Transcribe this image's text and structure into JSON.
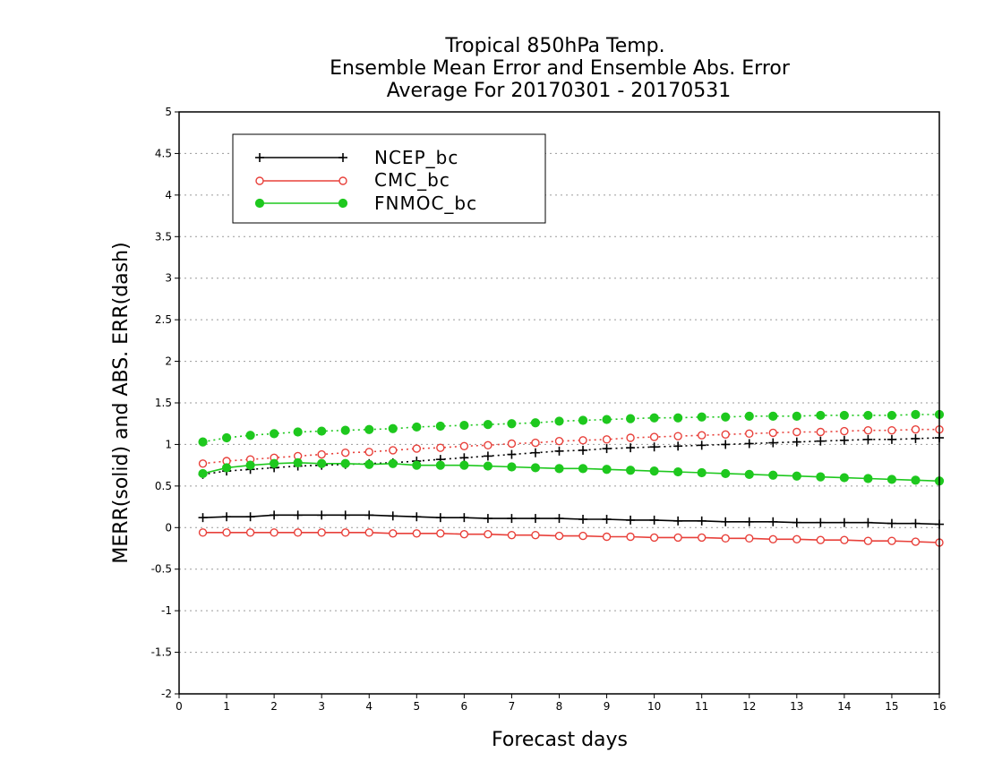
{
  "chart_data": {
    "type": "line",
    "title_lines": [
      "Tropical 850hPa Temp.",
      "Ensemble Mean Error and Ensemble Abs. Error",
      "Average For 20170301 - 20170531"
    ],
    "xlabel": "Forecast days",
    "ylabel": "MERR(solid) and ABS. ERR(dash)",
    "xlim": [
      0,
      16
    ],
    "ylim": [
      -2,
      5
    ],
    "x_ticks": [
      0,
      1,
      2,
      3,
      4,
      5,
      6,
      7,
      8,
      9,
      10,
      11,
      12,
      13,
      14,
      15,
      16
    ],
    "y_ticks": [
      -2,
      -1.5,
      -1,
      -0.5,
      0,
      0.5,
      1,
      1.5,
      2,
      2.5,
      3,
      3.5,
      4,
      4.5,
      5
    ],
    "grid": "horizontal dotted",
    "legend_position": "top-left",
    "x": [
      0.5,
      1,
      1.5,
      2,
      2.5,
      3,
      3.5,
      4,
      4.5,
      5,
      5.5,
      6,
      6.5,
      7,
      7.5,
      8,
      8.5,
      9,
      9.5,
      10,
      10.5,
      11,
      11.5,
      12,
      12.5,
      13,
      13.5,
      14,
      14.5,
      15,
      15.5,
      16
    ],
    "series": [
      {
        "name": "NCEP_bc",
        "color": "#000000",
        "marker": "plus",
        "merr": [
          0.12,
          0.13,
          0.13,
          0.15,
          0.15,
          0.15,
          0.15,
          0.15,
          0.14,
          0.13,
          0.12,
          0.12,
          0.11,
          0.11,
          0.11,
          0.11,
          0.1,
          0.1,
          0.09,
          0.09,
          0.08,
          0.08,
          0.07,
          0.07,
          0.07,
          0.06,
          0.06,
          0.06,
          0.06,
          0.05,
          0.05,
          0.04
        ],
        "abs_err": [
          0.64,
          0.68,
          0.7,
          0.72,
          0.74,
          0.75,
          0.76,
          0.77,
          0.78,
          0.8,
          0.82,
          0.84,
          0.86,
          0.88,
          0.9,
          0.92,
          0.93,
          0.95,
          0.96,
          0.97,
          0.98,
          0.99,
          1.0,
          1.01,
          1.02,
          1.03,
          1.04,
          1.05,
          1.06,
          1.06,
          1.07,
          1.08
        ]
      },
      {
        "name": "CMC_bc",
        "color": "#e8403a",
        "marker": "open-circle",
        "merr": [
          -0.06,
          -0.06,
          -0.06,
          -0.06,
          -0.06,
          -0.06,
          -0.06,
          -0.06,
          -0.07,
          -0.07,
          -0.07,
          -0.08,
          -0.08,
          -0.09,
          -0.09,
          -0.1,
          -0.1,
          -0.11,
          -0.11,
          -0.12,
          -0.12,
          -0.12,
          -0.13,
          -0.13,
          -0.14,
          -0.14,
          -0.15,
          -0.15,
          -0.16,
          -0.16,
          -0.17,
          -0.18
        ],
        "abs_err": [
          0.77,
          0.8,
          0.82,
          0.84,
          0.86,
          0.88,
          0.9,
          0.91,
          0.93,
          0.95,
          0.96,
          0.98,
          0.99,
          1.01,
          1.02,
          1.04,
          1.05,
          1.06,
          1.08,
          1.09,
          1.1,
          1.11,
          1.12,
          1.13,
          1.14,
          1.15,
          1.15,
          1.16,
          1.17,
          1.17,
          1.18,
          1.18
        ]
      },
      {
        "name": "FNMOC_bc",
        "color": "#1ec81e",
        "marker": "filled-circle",
        "merr": [
          0.65,
          0.72,
          0.75,
          0.77,
          0.78,
          0.77,
          0.77,
          0.76,
          0.77,
          0.75,
          0.75,
          0.75,
          0.74,
          0.73,
          0.72,
          0.71,
          0.71,
          0.7,
          0.69,
          0.68,
          0.67,
          0.66,
          0.65,
          0.64,
          0.63,
          0.62,
          0.61,
          0.6,
          0.59,
          0.58,
          0.57,
          0.56
        ],
        "abs_err": [
          1.03,
          1.08,
          1.11,
          1.13,
          1.15,
          1.16,
          1.17,
          1.18,
          1.19,
          1.21,
          1.22,
          1.23,
          1.24,
          1.25,
          1.26,
          1.28,
          1.29,
          1.3,
          1.31,
          1.32,
          1.32,
          1.33,
          1.33,
          1.34,
          1.34,
          1.34,
          1.35,
          1.35,
          1.35,
          1.35,
          1.36,
          1.36
        ]
      }
    ]
  }
}
